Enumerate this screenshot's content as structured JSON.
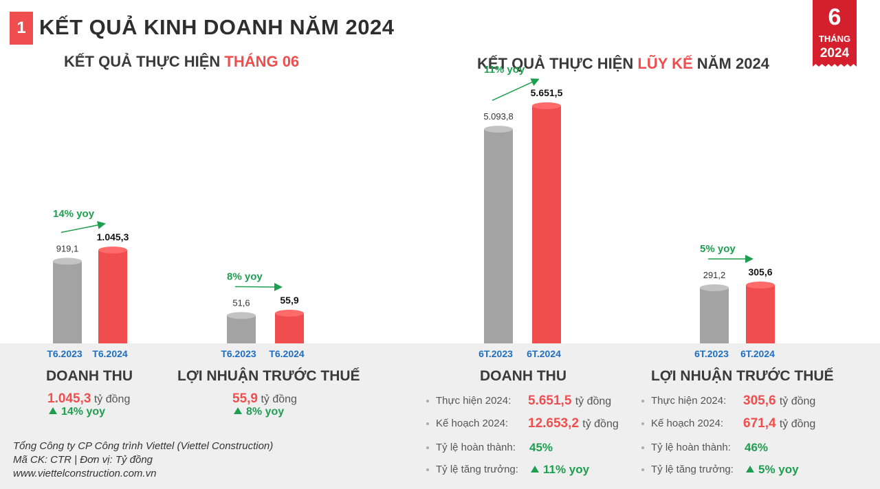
{
  "header": {
    "section_number": "1",
    "title": "KẾT QUẢ KINH DOANH NĂM 2024",
    "badge": {
      "number": "6",
      "month": "THÁNG",
      "year": "2024"
    }
  },
  "left_section": {
    "title_prefix": "KẾT QUẢ THỰC HIỆN ",
    "title_highlight": "THÁNG 06",
    "title_suffix": ""
  },
  "right_section": {
    "title_prefix": "KẾT QUẢ THỰC HIỆN ",
    "title_highlight": "LŨY KẾ",
    "title_suffix": " NĂM 2024"
  },
  "chart_data": [
    {
      "type": "bar",
      "id": "m-rev",
      "categories": [
        "T6.2023",
        "T6.2024"
      ],
      "values": [
        919.1,
        1045.3
      ],
      "value_labels": [
        "919,1",
        "1.045,3"
      ],
      "yoy": "14% yoy",
      "xlabel": "DOANH THU",
      "colors": [
        "#a3a3a3",
        "#f04e4e"
      ]
    },
    {
      "type": "bar",
      "id": "m-pbt",
      "categories": [
        "T6.2023",
        "T6.2024"
      ],
      "values": [
        51.6,
        55.9
      ],
      "value_labels": [
        "51,6",
        "55,9"
      ],
      "yoy": "8% yoy",
      "xlabel": "LỢI NHUẬN TRƯỚC THUẾ",
      "colors": [
        "#a3a3a3",
        "#f04e4e"
      ]
    },
    {
      "type": "bar",
      "id": "y-rev",
      "categories": [
        "6T.2023",
        "6T.2024"
      ],
      "values": [
        5093.8,
        5651.5
      ],
      "value_labels": [
        "5.093,8",
        "5.651,5"
      ],
      "yoy": "11% yoy",
      "xlabel": "DOANH THU",
      "colors": [
        "#a3a3a3",
        "#f04e4e"
      ]
    },
    {
      "type": "bar",
      "id": "y-pbt",
      "categories": [
        "6T.2023",
        "6T.2024"
      ],
      "values": [
        291.2,
        305.6
      ],
      "value_labels": [
        "291,2",
        "305,6"
      ],
      "yoy": "5% yoy",
      "xlabel": "LỢI NHUẬN TRƯỚC THUẾ",
      "colors": [
        "#a3a3a3",
        "#f04e4e"
      ]
    }
  ],
  "monthly_summary": {
    "revenue": {
      "title": "DOANH THU",
      "value": "1.045,3",
      "unit": "tỷ đồng",
      "yoy": "14% yoy"
    },
    "profit": {
      "title": "LỢI NHUẬN TRƯỚC THUẾ",
      "value": "55,9",
      "unit": "tỷ đồng",
      "yoy": "8% yoy"
    }
  },
  "ytd_summary": {
    "revenue": {
      "title": "DOANH THU",
      "actual_label": "Thực hiện 2024:",
      "actual_value": "5.651,5",
      "unit": "tỷ đồng",
      "plan_label": "Kế hoạch 2024:",
      "plan_value": "12.653,2",
      "plan_unit": "tỷ đồng",
      "completion_label": "Tỷ lệ hoàn thành:",
      "completion_value": "45%",
      "growth_label": "Tỷ lệ tăng trưởng:",
      "growth_value": "11% yoy"
    },
    "profit": {
      "title": "LỢI NHUẬN TRƯỚC THUẾ",
      "actual_label": "Thực hiện 2024:",
      "actual_value": "305,6",
      "unit": "tỷ đồng",
      "plan_label": "Kế hoạch 2024:",
      "plan_value": "671,4",
      "plan_unit": "tỷ đồng",
      "completion_label": "Tỷ lệ hoàn thành:",
      "completion_value": "46%",
      "growth_label": "Tỷ lệ tăng trưởng:",
      "growth_value": "5% yoy"
    }
  },
  "footer": {
    "company": "Tổng Công ty CP Công trình Viettel (Viettel Construction)",
    "ticker": "Mã CK: CTR  |  Đơn vị: Tỷ đồng",
    "website": "www.viettelconstruction.com.vn"
  },
  "colors": {
    "accent_red": "#f04e4e",
    "badge_red": "#d4202c",
    "gray_bar": "#a3a3a3",
    "green": "#1e9e4f",
    "blue_label": "#1f6fc1"
  }
}
